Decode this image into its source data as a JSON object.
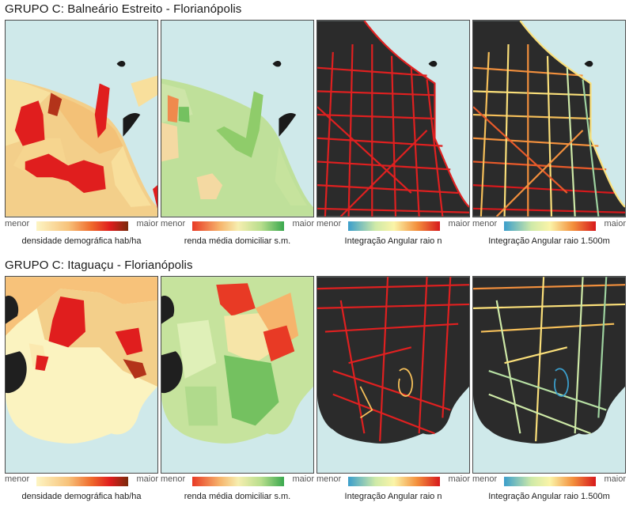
{
  "groups": [
    {
      "title": "GRUPO C: Balneário Estreito - Florianópolis",
      "panels": [
        {
          "layer": "density",
          "legend": "densidade demográfica hab/ha",
          "min": "menor",
          "max": "maior"
        },
        {
          "layer": "income",
          "legend": "renda média domiciliar s.m.",
          "min": "menor",
          "max": "maior"
        },
        {
          "layer": "integration-n",
          "legend": "Integração Angular raio n",
          "min": "menor",
          "max": "maior"
        },
        {
          "layer": "integration-1500",
          "legend": "Integração Angular raio 1.500m",
          "min": "menor",
          "max": "maior"
        }
      ]
    },
    {
      "title": "GRUPO C: Itaguaçu - Florianópolis",
      "panels": [
        {
          "layer": "density",
          "legend": "densidade demográfica hab/ha",
          "min": "menor",
          "max": "maior"
        },
        {
          "layer": "income",
          "legend": "renda média domiciliar s.m.",
          "min": "menor",
          "max": "maior"
        },
        {
          "layer": "integration-n",
          "legend": "Integração Angular raio n",
          "min": "menor",
          "max": "maior"
        },
        {
          "layer": "integration-1500",
          "legend": "Integração Angular raio 1.500m",
          "min": "menor",
          "max": "maior"
        }
      ]
    }
  ],
  "colors": {
    "water": "#cfe9ea",
    "density_ramp": [
      "#fdf5c4",
      "#f7c27a",
      "#ef6a2c",
      "#e01e1e",
      "#7a2a0c"
    ],
    "income_ramp": [
      "#e83a25",
      "#f6b46c",
      "#f6eeb0",
      "#b8de8d",
      "#3aa84e"
    ],
    "integration_ramp": [
      "#3b9ecb",
      "#cfeaa8",
      "#fbf4a8",
      "#f3903d",
      "#d7191c"
    ],
    "land_dark": "#2b2b2b"
  }
}
